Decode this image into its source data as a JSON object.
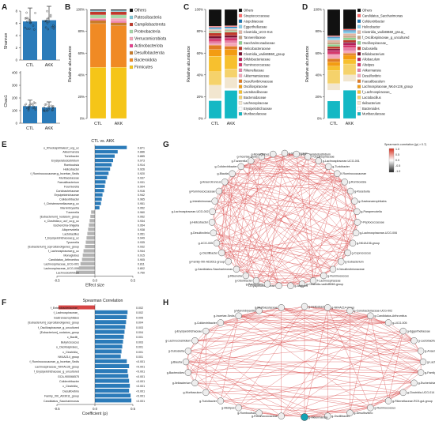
{
  "panel_letters": [
    "A",
    "B",
    "C",
    "D",
    "E",
    "F",
    "G",
    "H"
  ],
  "panelA": {
    "letter": "A",
    "top": {
      "ylabel": "Shannon",
      "categories": [
        "CTL",
        "AKK"
      ],
      "means": [
        6.3,
        6.5
      ],
      "ticks": [
        "0",
        "2",
        "4",
        "6",
        "8"
      ],
      "ylim": [
        0,
        8
      ]
    },
    "bottom": {
      "ylabel": "Chao1",
      "categories": [
        "CTL",
        "AKK"
      ],
      "means": [
        135,
        125
      ],
      "ticks": [
        "0",
        "100",
        "200",
        "300",
        "400"
      ],
      "ylim": [
        0,
        400
      ]
    },
    "bar_color": "#2b7bb9"
  },
  "panelB": {
    "letter": "B",
    "ylabel": "Relative abundance",
    "yticks": [
      "0%",
      "20%",
      "40%",
      "60%",
      "80%",
      "100%"
    ],
    "chart_data": {
      "type": "bar",
      "stacked": true,
      "categories": [
        "CTL",
        "AKK"
      ],
      "series": [
        {
          "name": "Firmicutes",
          "color": "#f5c518",
          "values": [
            47,
            47
          ]
        },
        {
          "name": "Bacteroidota",
          "color": "#f08a24",
          "values": [
            40,
            38
          ]
        },
        {
          "name": "Desulfobacterota",
          "color": "#c97c2a",
          "values": [
            3,
            3
          ]
        },
        {
          "name": "Actinobacteriota",
          "color": "#e83e8c",
          "values": [
            1,
            1
          ]
        },
        {
          "name": "Verrucomicrobiota",
          "color": "#f4a7b9",
          "values": [
            1,
            3
          ]
        },
        {
          "name": "Proteobacteria",
          "color": "#a6d8a8",
          "values": [
            3,
            3
          ]
        },
        {
          "name": "Campilobacterota",
          "color": "#c0392b",
          "values": [
            3,
            3
          ]
        },
        {
          "name": "Patescibacteria",
          "color": "#7dc8d8",
          "values": [
            1,
            1
          ]
        },
        {
          "name": "Others",
          "color": "#111111",
          "values": [
            1,
            1
          ]
        }
      ]
    }
  },
  "panelC": {
    "letter": "C",
    "ylabel": "Relative abundance",
    "yticks": [
      "0%",
      "20%",
      "40%",
      "60%",
      "80%",
      "100%"
    ],
    "chart_data": {
      "type": "bar",
      "stacked": true,
      "categories": [
        "CTL",
        "AKK"
      ],
      "series": [
        {
          "name": "Muribaculaceae",
          "color": "#14b8c4",
          "values": [
            16,
            26
          ]
        },
        {
          "name": "Erysipelotrichaceae",
          "color": "#ffffff",
          "values": [
            2,
            2
          ]
        },
        {
          "name": "Lachnospiraceae",
          "color": "#f2e6cf",
          "values": [
            12,
            10
          ]
        },
        {
          "name": "Bacteroidaceae",
          "color": "#f5d26b",
          "values": [
            12,
            8
          ]
        },
        {
          "name": "Lactobacillaceae",
          "color": "#f7c02e",
          "values": [
            14,
            12
          ]
        },
        {
          "name": "Oscillospiraceae",
          "color": "#f39c12",
          "values": [
            6,
            6
          ]
        },
        {
          "name": "Desulfovibrionaceae",
          "color": "#e07b26",
          "values": [
            4,
            3
          ]
        },
        {
          "name": "Akkermansiaceae",
          "color": "#f4a7b9",
          "values": [
            1,
            3
          ]
        },
        {
          "name": "Rikenellaceae",
          "color": "#e57fa6",
          "values": [
            2,
            2
          ]
        },
        {
          "name": "Ruminococcaceae",
          "color": "#d6366b",
          "values": [
            2,
            2
          ]
        },
        {
          "name": "Bifidobacteriaceae",
          "color": "#b81d5a",
          "values": [
            1,
            1
          ]
        },
        {
          "name": "Clostridia_vadinBB60_group",
          "color": "#7a1331",
          "values": [
            2,
            2
          ]
        },
        {
          "name": "Helicobacteraceae",
          "color": "#c0392b",
          "values": [
            3,
            3
          ]
        },
        {
          "name": "Saccharimonadaceae",
          "color": "#8fd18f",
          "values": [
            1,
            1
          ]
        },
        {
          "name": "Tannerellaceae",
          "color": "#c4a484",
          "values": [
            1,
            1
          ]
        },
        {
          "name": "Clostridia_UCG-014",
          "color": "#e3b5a4",
          "values": [
            1,
            1
          ]
        },
        {
          "name": "Eggerthellaceae",
          "color": "#87ceeb",
          "values": [
            1,
            1
          ]
        },
        {
          "name": "Atopobiaceae",
          "color": "#1f77b4",
          "values": [
            1,
            1
          ]
        },
        {
          "name": "Streptococcaceae",
          "color": "#ff6b6b",
          "values": [
            1,
            1
          ]
        },
        {
          "name": "Others",
          "color": "#111111",
          "values": [
            15,
            15
          ]
        }
      ]
    }
  },
  "panelD": {
    "letter": "D",
    "ylabel": "Relative abundance",
    "yticks": [
      "0%",
      "20%",
      "40%",
      "60%",
      "80%",
      "100%"
    ],
    "chart_data": {
      "type": "bar",
      "stacked": true,
      "categories": [
        "CTL",
        "AKK"
      ],
      "series": [
        {
          "name": "Muribaculaceae",
          "color": "#14b8c4",
          "values": [
            16,
            26
          ]
        },
        {
          "name": "Bacteroides",
          "color": "#ffffff",
          "values": [
            10,
            8
          ]
        },
        {
          "name": "Ileibacterium",
          "color": "#f2e6cf",
          "values": [
            6,
            6
          ]
        },
        {
          "name": "Lactobacillus",
          "color": "#f5d26b",
          "values": [
            12,
            10
          ]
        },
        {
          "name": "f_Lachnospiraceae_",
          "color": "#f7c02e",
          "values": [
            4,
            4
          ]
        },
        {
          "name": "Lachnospiraceae_NK4A136_group",
          "color": "#f39c12",
          "values": [
            4,
            4
          ]
        },
        {
          "name": "Faecalibaculum",
          "color": "#e07b26",
          "values": [
            3,
            2
          ]
        },
        {
          "name": "Desulfovibrio",
          "color": "#f4a7b9",
          "values": [
            3,
            2
          ]
        },
        {
          "name": "Akkermansia",
          "color": "#e57fa6",
          "values": [
            1,
            3
          ]
        },
        {
          "name": "Alistipes",
          "color": "#d6366b",
          "values": [
            2,
            2
          ]
        },
        {
          "name": "Allobaculum",
          "color": "#b81d5a",
          "values": [
            2,
            2
          ]
        },
        {
          "name": "Bifidobacterium",
          "color": "#7a1331",
          "values": [
            1,
            1
          ]
        },
        {
          "name": "Dubosiella",
          "color": "#c0392b",
          "values": [
            2,
            2
          ]
        },
        {
          "name": "Oscillospiraceae_",
          "color": "#8fd18f",
          "values": [
            2,
            2
          ]
        },
        {
          "name": "f_Oscillospiraceae_g_uncultured",
          "color": "#c4a484",
          "values": [
            2,
            2
          ]
        },
        {
          "name": "Clostridia_vadinBB60_group_",
          "color": "#e3b5a4",
          "values": [
            2,
            2
          ]
        },
        {
          "name": "Helicobacter",
          "color": "#87ceeb",
          "values": [
            2,
            2
          ]
        },
        {
          "name": "Colidextribacter",
          "color": "#1f77b4",
          "values": [
            1,
            1
          ]
        },
        {
          "name": "Candidatus_Saccharimonas",
          "color": "#ff6b6b",
          "values": [
            1,
            1
          ]
        },
        {
          "name": "Others",
          "color": "#111111",
          "values": [
            24,
            18
          ]
        }
      ]
    }
  },
  "panelE": {
    "letter": "E",
    "title": "CTL vs. AKK",
    "xlabel": "Effect size",
    "xticks": [
      "-0.5",
      "0.0",
      "0.5"
    ],
    "bar_color_pos": "#2b7bb9",
    "bar_color_neg": "#b3b3b3",
    "chart_data": {
      "type": "bar",
      "orientation": "horizontal",
      "xlim": [
        -0.5,
        0.5
      ],
      "categories": [
        "o_Rhodospirillales;f_ucg_uc",
        "Akkermansia",
        "Turicibacter",
        "Erysipelatoclostridium",
        "Romboutsia",
        "Helicobacter",
        "f_Ruminococcaceae;g_Incertae_Sedis",
        "Muribaculaceae",
        "Faecalibacterium",
        "Fournierella",
        "Coriobacteriaceae",
        "Erysipelotrichaceae",
        "Colidextribacter",
        "f_Christensenellaceae;g_uc",
        "Marvinbryantia",
        "Tuzzerella",
        "[Eubacterium]_nodatum_group",
        "c_Clostridia;o_uc;f_uc;g_uc",
        "Escherichia-Shigella",
        "Alloprevotella",
        "Lactobacillus",
        "f_Erysipelotrichaceae;g_uc",
        "Tyzzerella",
        "[Eubacterium]_coprostanoligenes_group",
        "f_Lachnospiraceae;g_uc",
        "Monoglobus",
        "Candidatus_Arthromitus",
        "Lachnospiraceae_UCG-001",
        "Lachnospiraceae_UCG-006",
        "Lachnoclostridium"
      ],
      "values": [
        0.42,
        0.3,
        0.26,
        0.24,
        0.22,
        0.2,
        0.18,
        0.16,
        0.14,
        0.13,
        0.12,
        0.1,
        0.09,
        0.08,
        0.06,
        -0.05,
        -0.06,
        -0.07,
        -0.08,
        -0.09,
        -0.1,
        -0.11,
        -0.12,
        -0.13,
        -0.15,
        -0.16,
        -0.17,
        -0.19,
        -0.21,
        -0.25
      ],
      "labels": [
        "0.871",
        "0.886",
        "0.885",
        "0.973",
        "0.914",
        "0.926",
        "0.920",
        "0.937",
        "0.931",
        "0.904",
        "0.916",
        "0.942",
        "0.965",
        "0.951",
        "0.952",
        "0.960",
        "0.952",
        "0.934",
        "0.954",
        "0.938",
        "0.951",
        "0.949",
        "0.935",
        "0.932",
        "0.944",
        "0.915",
        "0.905",
        "0.811",
        "0.802",
        "0.750"
      ]
    }
  },
  "panelF": {
    "letter": "F",
    "title": "Spearman Correlation",
    "xlabel": "Coefficient (ρ)",
    "xticks": [
      "-0.5",
      "0.0",
      "0.5"
    ],
    "bar_color_pos": "#2b7bb9",
    "bar_color_neg": "#d64545",
    "chart_data": {
      "type": "bar",
      "orientation": "horizontal",
      "xlim": [
        -0.5,
        0.5
      ],
      "categories": [
        "f_Enterobacteriaceae_",
        "f_Lachnospiraceae_",
        "Gastranaerophilales",
        "[Eubacterium]_coprostanoligenes_group",
        "f_Oscillospiraceae_g_uncultured",
        "[Eubacterium]_nodatum_group",
        "c_Bacilli_",
        "Butyricicoccus",
        "o_Oscillospirales_",
        "c_Clostridia_",
        "NK4A214_group",
        "f_Ruminococcaceae_g_Incertae_Sedis",
        "Lachnospiraceae_NK4A136_group",
        "f_Erysipelotrichaceae_g_uncultured",
        "GCA-900066575",
        "Colidextribacter",
        "c_Clostridia_",
        "Desulfovibrio",
        "Family_XIII_AD3011_group",
        "Candidatus_Saccharimonas"
      ],
      "values": [
        -0.48,
        0.43,
        0.42,
        0.41,
        0.4,
        0.39,
        0.38,
        0.37,
        0.36,
        0.35,
        0.34,
        0.42,
        0.45,
        0.43,
        0.44,
        0.45,
        0.46,
        0.45,
        0.47,
        0.48
      ],
      "labels": [
        "0.002",
        "0.002",
        "0.005",
        "0.004",
        "0.003",
        "0.004",
        "0.001",
        "0.003",
        "0.001",
        "0.001",
        "0.001",
        "<0.001",
        "<0.001",
        "<0.001",
        "<0.001",
        "<0.001",
        "<0.001",
        "<0.001",
        "<0.001",
        "<0.001"
      ]
    }
  },
  "panelG": {
    "letter": "G",
    "legend_title": "Spearman's correlation (|ρ| > 0.7)",
    "legend_ticks": [
      "1.0",
      "0.5",
      "0.0",
      "-0.5",
      "-1.0"
    ],
    "edge_color": "#d94b4b",
    "nodes": [
      "g-Muribaculum",
      "g-Erysipelatoclostridium",
      "f-Oscillospiraceae",
      "g-Lachnospiraceae-UCG-001",
      "g-Turicibacter",
      "f-Ruminococcaceae",
      "g-Romboutsia",
      "g-Roseburia",
      "g-Gastranaerophilales",
      "g-Paraprevotella",
      "f-Peptococcaceae",
      "g-Lachnospiraceae-UCG-006",
      "g-NK4A136-group",
      "g-Coprococcus",
      "g-Eubacterium",
      "f-Desulfovibrionaceae",
      "g-Ruminococcus",
      "f-Lachnospiraceae",
      "g-Clostridia-vadinBB60-group",
      "g-Alistipes",
      "f-Erysipelotrichaceae",
      "g-Bacteroides",
      "g-Odoribacter",
      "g-Rikenella",
      "g-Candidatus-Saccharimonas",
      "g-Family-XIII-AD3011-group",
      "g-Oscillibacter",
      "g-UCG-005",
      "g-Desulfovibrio",
      "g-Helicobacter",
      "g-Lachnospiraceae-UCG-002",
      "g-Intestinimonas",
      "g-Ruminococcaceae",
      "g-Anaerotruncus",
      "g-Blautia",
      "g-Colidextribacter",
      "g-Tuzzerella",
      "g-Incertae-Sedis",
      "g-Monoglobus"
    ]
  },
  "panelH": {
    "letter": "H",
    "edge_color": "#d94b4b",
    "nodes": [
      "g-Helicobacter",
      "g-NK4A214-group",
      "g-Coriobacteriaceae-UCG-002",
      "g-Candidatus-Arthromitus",
      "g-UCG-005",
      "g-Eggerthellaceae",
      "g-Lactobacillus",
      "g-Anaerotruncus",
      "g-Lachnospiraceae-UCG-001",
      "g-Family-XIII-AD3011-group",
      "g-Escherichia-Shigella",
      "g-Clostridia-UCG-014",
      "g-Rikenellaceae-RC9-gut-group",
      "g-Ruminococcus",
      "g-Desulfovibrio",
      "g-Oscillibacter",
      "g-Akkermansia",
      "g-Ruminococcaceae",
      "g-Romboutsia",
      "g-Alistipes",
      "g-Turicibacter",
      "g-Muribaculum",
      "g-Ileibacterium",
      "g-Bacteroides",
      "g-Blautia",
      "g-Dubosiella",
      "g-Lachnoclostridium",
      "g-Erysipelotrichaceae",
      "g-Colidextribacter",
      "g-Incertae-Sedis",
      "g-Marvinbryantia",
      "g-Muribaculaceae"
    ]
  }
}
